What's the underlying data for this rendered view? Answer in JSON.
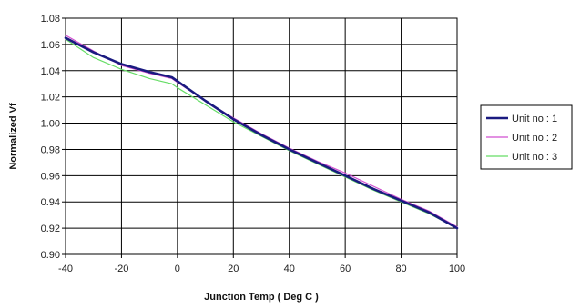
{
  "chart_data": {
    "type": "line",
    "title": "",
    "xlabel": "Junction Temp ( Deg C )",
    "ylabel": "Normalized Vf",
    "xlim": [
      -40,
      100
    ],
    "ylim": [
      0.9,
      1.08
    ],
    "xticks": [
      "-40",
      "-20",
      "0",
      "20",
      "40",
      "60",
      "80",
      "100"
    ],
    "yticks": [
      "0.90",
      "0.92",
      "0.94",
      "0.96",
      "0.98",
      "1.00",
      "1.02",
      "1.04",
      "1.06",
      "1.08"
    ],
    "grid": true,
    "legend_position": "right",
    "series": [
      {
        "name": "Unit no : 1",
        "color": "#1a1a80",
        "x": [
          -40,
          -30,
          -20,
          -10,
          -2,
          0,
          10,
          20,
          30,
          40,
          50,
          60,
          70,
          80,
          90,
          100
        ],
        "y": [
          1.065,
          1.054,
          1.045,
          1.039,
          1.035,
          1.032,
          1.017,
          1.003,
          0.991,
          0.98,
          0.97,
          0.96,
          0.95,
          0.941,
          0.932,
          0.92
        ]
      },
      {
        "name": "Unit no : 2",
        "color": "#d04fd0",
        "x": [
          -40,
          -30,
          -20,
          -10,
          -2,
          0,
          10,
          20,
          30,
          40,
          50,
          60,
          70,
          80,
          90,
          100
        ],
        "y": [
          1.067,
          1.055,
          1.044,
          1.038,
          1.034,
          1.031,
          1.017,
          1.004,
          0.992,
          0.981,
          0.971,
          0.962,
          0.952,
          0.942,
          0.933,
          0.921
        ]
      },
      {
        "name": "Unit no : 3",
        "color": "#66dd66",
        "x": [
          -40,
          -30,
          -20,
          -10,
          -2,
          0,
          10,
          20,
          30,
          40,
          50,
          60,
          70,
          80,
          90,
          100
        ],
        "y": [
          1.064,
          1.05,
          1.041,
          1.034,
          1.03,
          1.027,
          1.014,
          1.001,
          0.99,
          0.979,
          0.969,
          0.959,
          0.949,
          0.94,
          0.931,
          0.92
        ]
      }
    ]
  }
}
